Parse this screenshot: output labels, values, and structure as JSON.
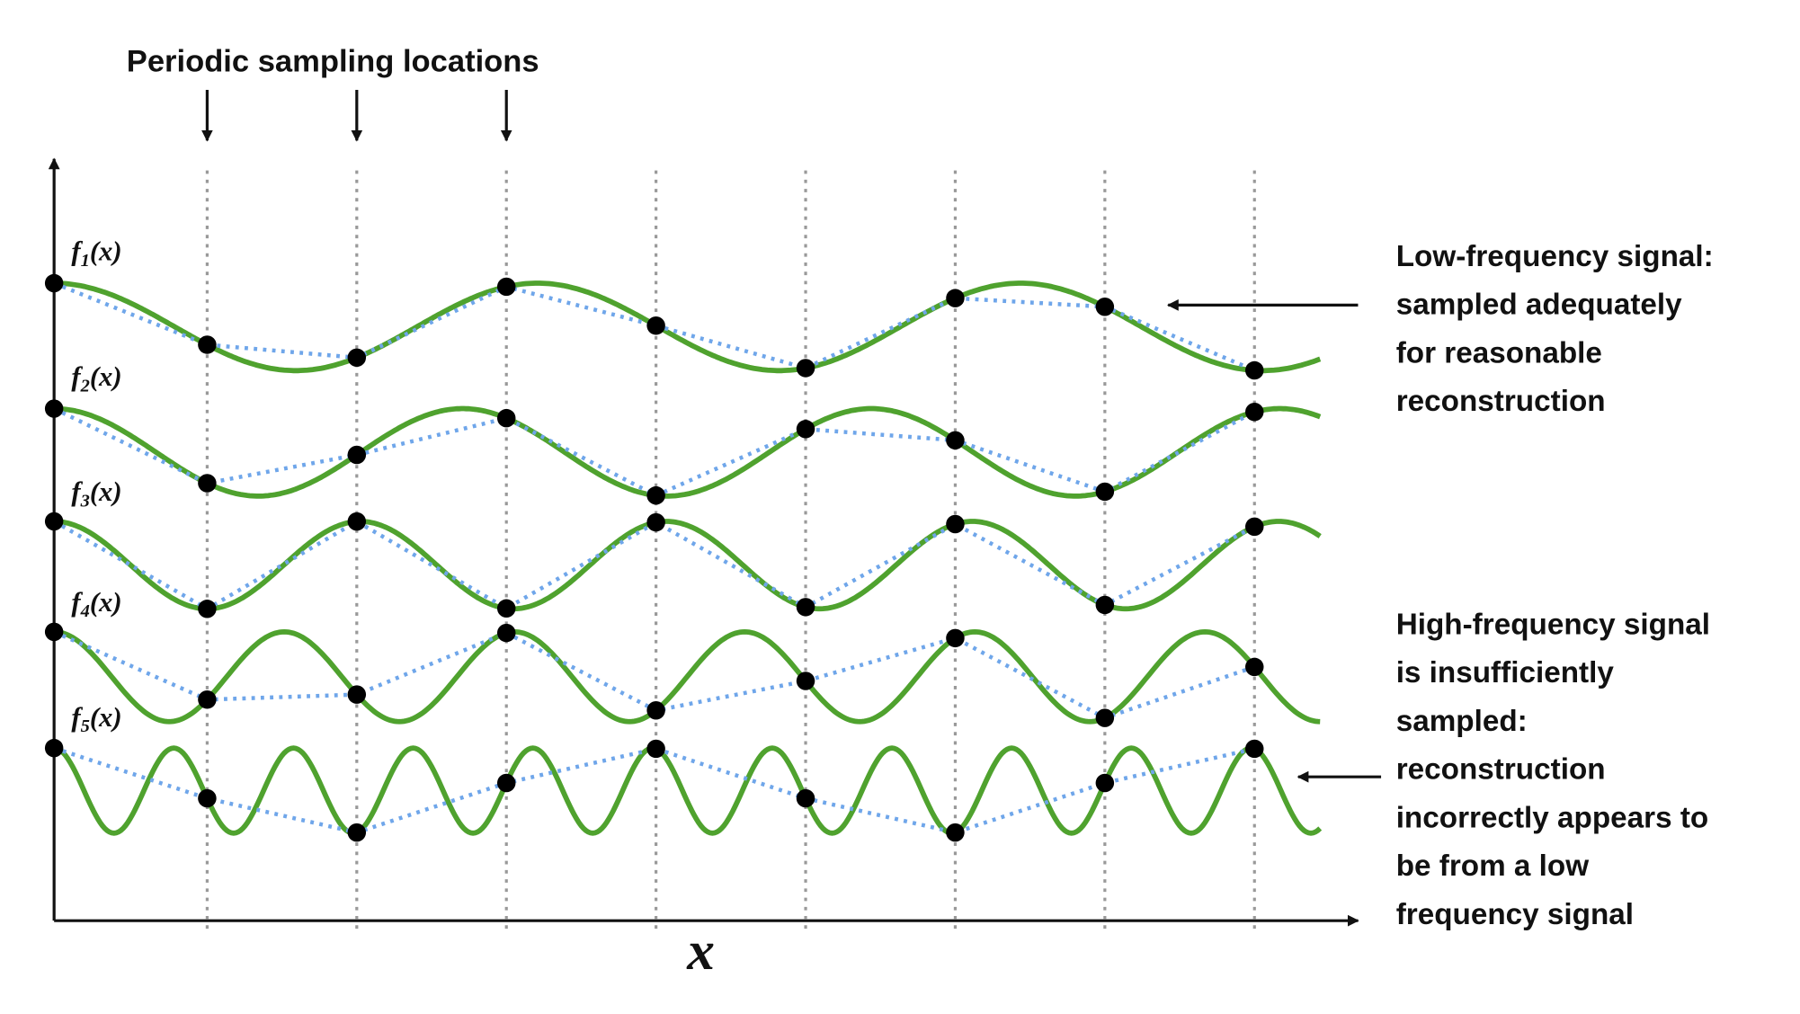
{
  "title": "Periodic sampling locations",
  "signals": [
    {
      "f": "f",
      "sub": "1",
      "arg": "(x)"
    },
    {
      "f": "f",
      "sub": "2",
      "arg": "(x)"
    },
    {
      "f": "f",
      "sub": "3",
      "arg": "(x)"
    },
    {
      "f": "f",
      "sub": "4",
      "arg": "(x)"
    },
    {
      "f": "f",
      "sub": "5",
      "arg": "(x)"
    }
  ],
  "axis_label": "x",
  "annotations": [
    {
      "lines": [
        "Low-frequency signal:",
        "sampled adequately",
        "for reasonable",
        "reconstruction"
      ]
    },
    {
      "lines": [
        "High-frequency signal",
        "is insufficiently",
        "sampled:",
        "reconstruction",
        "incorrectly appears to",
        "be from a low",
        "frequency signal"
      ]
    }
  ]
}
